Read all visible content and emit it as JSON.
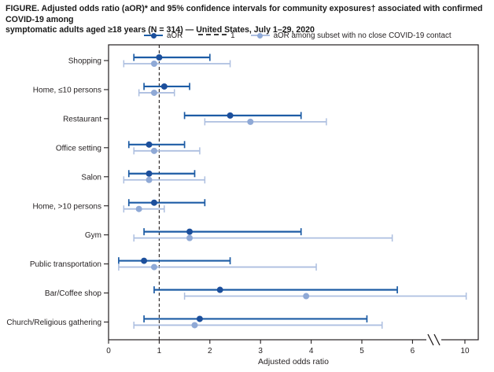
{
  "figure": {
    "title_line1": "FIGURE. Adjusted odds ratio (aOR)* and 95% confidence intervals for community exposures† associated with confirmed COVID-19 among",
    "title_line2": "symptomatic adults aged ≥18 years (N = 314) — United States, July 1–29, 2020"
  },
  "legend": {
    "items": [
      {
        "label": "aOR",
        "swatch": "solid-dark"
      },
      {
        "label": "1",
        "swatch": "dashed"
      },
      {
        "label": "aOR among subset with no close COVID-19 contact",
        "swatch": "solid-light"
      }
    ]
  },
  "colors": {
    "aor_line": "#1d5ca5",
    "aor_point": "#1c4f9c",
    "subset_line": "#adbfe0",
    "subset_point": "#8fa9d6",
    "axis": "#231f20",
    "reference_dash": "#231f20"
  },
  "chart_data": {
    "type": "forest",
    "orientation": "horizontal",
    "title": "Adjusted odds ratio (aOR) and 95% confidence intervals for community exposures associated with confirmed COVID-19",
    "xlabel": "Adjusted odds ratio",
    "x_ticks": [
      0,
      1,
      2,
      3,
      4,
      5,
      6,
      10
    ],
    "axis_break_between": [
      6,
      10
    ],
    "reference_line": 1,
    "grid": false,
    "legend_position": "top",
    "categories": [
      "Shopping",
      "Home, ≤10 persons",
      "Restaurant",
      "Office setting",
      "Salon",
      "Home, >10 persons",
      "Gym",
      "Public transportation",
      "Bar/Coffee shop",
      "Church/Religious gathering"
    ],
    "series": [
      {
        "name": "aOR",
        "values": [
          {
            "or": 1.0,
            "lo": 0.5,
            "hi": 2.0
          },
          {
            "or": 1.1,
            "lo": 0.7,
            "hi": 1.6
          },
          {
            "or": 2.4,
            "lo": 1.5,
            "hi": 3.8
          },
          {
            "or": 0.8,
            "lo": 0.4,
            "hi": 1.5
          },
          {
            "or": 0.8,
            "lo": 0.4,
            "hi": 1.7
          },
          {
            "or": 0.9,
            "lo": 0.4,
            "hi": 1.9
          },
          {
            "or": 1.6,
            "lo": 0.7,
            "hi": 3.8
          },
          {
            "or": 0.7,
            "lo": 0.2,
            "hi": 2.4
          },
          {
            "or": 2.2,
            "lo": 0.9,
            "hi": 5.7
          },
          {
            "or": 1.8,
            "lo": 0.7,
            "hi": 5.1
          }
        ]
      },
      {
        "name": "aOR among subset with no close COVID-19 contact",
        "values": [
          {
            "or": 0.9,
            "lo": 0.3,
            "hi": 2.4
          },
          {
            "or": 0.9,
            "lo": 0.6,
            "hi": 1.3
          },
          {
            "or": 2.8,
            "lo": 1.9,
            "hi": 4.3
          },
          {
            "or": 0.9,
            "lo": 0.5,
            "hi": 1.8
          },
          {
            "or": 0.8,
            "lo": 0.3,
            "hi": 1.9
          },
          {
            "or": 0.6,
            "lo": 0.3,
            "hi": 1.1
          },
          {
            "or": 1.6,
            "lo": 0.5,
            "hi": 5.6
          },
          {
            "or": 0.9,
            "lo": 0.2,
            "hi": 4.1
          },
          {
            "or": 3.9,
            "lo": 1.5,
            "hi": 10.1
          },
          {
            "or": 1.7,
            "lo": 0.5,
            "hi": 5.4
          }
        ]
      }
    ]
  }
}
